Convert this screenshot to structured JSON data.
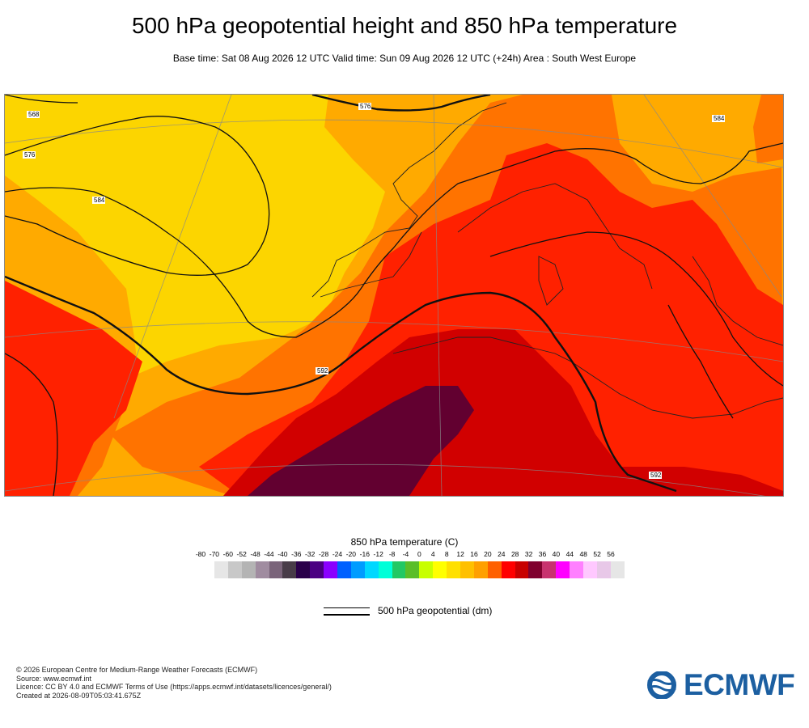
{
  "header": {
    "title": "500 hPa geopotential height and 850 hPa temperature",
    "subtitle": "Base time: Sat 08 Aug 2026 12 UTC Valid time: Sun 09 Aug 2026 12 UTC (+24h) Area : South West Europe"
  },
  "map": {
    "region": "South West Europe",
    "contour_labels": {
      "c568": "568",
      "c576a": "576",
      "c576b": "576",
      "c584": "584",
      "c592a": "592",
      "c592b": "592",
      "c584b": "584"
    },
    "colors": {
      "t16": "#fcd500",
      "t20": "#ffaa00",
      "t24": "#ff7300",
      "t28": "#ff2100",
      "t32": "#d10000",
      "t36": "#620030"
    }
  },
  "legend": {
    "temperature_title": "850 hPa temperature (C)",
    "ticks": [
      "-80",
      "-70",
      "-60",
      "-52",
      "-48",
      "-44",
      "-40",
      "-36",
      "-32",
      "-28",
      "-24",
      "-20",
      "-16",
      "-12",
      "-8",
      "-4",
      "0",
      "4",
      "8",
      "12",
      "16",
      "20",
      "24",
      "28",
      "32",
      "36",
      "40",
      "44",
      "48",
      "52",
      "56"
    ],
    "swatch_colors": [
      "#e6e6e6",
      "#c8c8c8",
      "#b4b4b4",
      "#a08ca0",
      "#7a647a",
      "#483c48",
      "#2a004a",
      "#4b0082",
      "#8a00ff",
      "#0060ff",
      "#009cff",
      "#00d8ff",
      "#00ffd8",
      "#22c864",
      "#5abe28",
      "#c8ff00",
      "#ffff00",
      "#ffe000",
      "#ffc000",
      "#ffa000",
      "#ff6000",
      "#ff0000",
      "#c80000",
      "#80002e",
      "#c8326e",
      "#ff00ff",
      "#ff80ff",
      "#ffc8ff",
      "#e8c8e8",
      "#e6e6e6"
    ],
    "geopotential_label": "500 hPa geopotential (dm)"
  },
  "footer": {
    "lines": [
      "© 2026 European Centre for Medium-Range Weather Forecasts (ECMWF)",
      "Source: www.ecmwf.int",
      "Licence: CC BY 4.0 and ECMWF Terms of Use (https://apps.ecmwf.int/datasets/licences/general/)",
      "Created at 2026-08-09T05:03:41.675Z"
    ],
    "logo_text": "ECMWF",
    "logo_color": "#1c5fa1"
  }
}
